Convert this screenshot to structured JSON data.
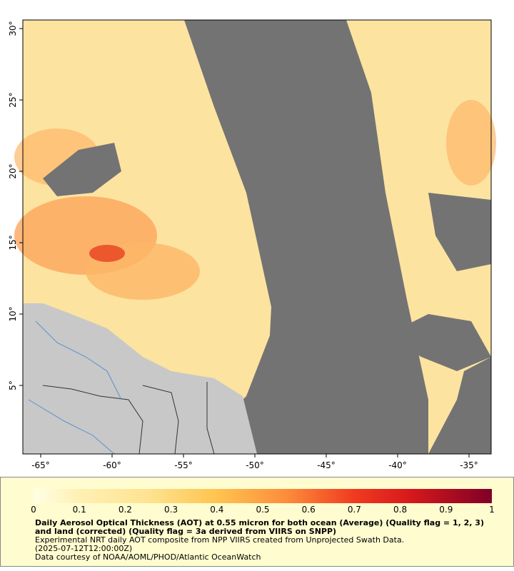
{
  "map": {
    "xlim": [
      -66.25,
      -33.45
    ],
    "ylim": [
      0.2,
      30.6
    ],
    "xticks": [
      {
        "value": -65,
        "label": "-65°"
      },
      {
        "value": -60,
        "label": "-60°"
      },
      {
        "value": -55,
        "label": "-55°"
      },
      {
        "value": -50,
        "label": "-50°"
      },
      {
        "value": -45,
        "label": "-45°"
      },
      {
        "value": -40,
        "label": "-40°"
      },
      {
        "value": -35,
        "label": "-35°"
      }
    ],
    "yticks": [
      {
        "value": 30,
        "label": "30°"
      },
      {
        "value": 25,
        "label": "25°"
      },
      {
        "value": 20,
        "label": "20°"
      },
      {
        "value": 15,
        "label": "15°"
      },
      {
        "value": 10,
        "label": "10°"
      },
      {
        "value": 5,
        "label": "5°"
      }
    ]
  },
  "colorbar": {
    "ticks": [
      0,
      0.1,
      0.2,
      0.3,
      0.4,
      0.5,
      0.6,
      0.7,
      0.8,
      0.9,
      1
    ]
  },
  "caption": {
    "title": "Daily Aerosol Optical Thickness (AOT) at 0.55 micron for both ocean (Average) (Quality flag = 1, 2, 3) and land (corrected) (Quality flag = 3a derived from VIIRS on SNPP)",
    "lines": [
      "Experimental NRT daily AOT composite from NPP VIIRS created from Unprojected Swath Data.",
      "(2025-07-12T12:00:00Z)",
      "Data courtesy of NOAA/AOML/PHOD/Atlantic OceanWatch"
    ]
  }
}
